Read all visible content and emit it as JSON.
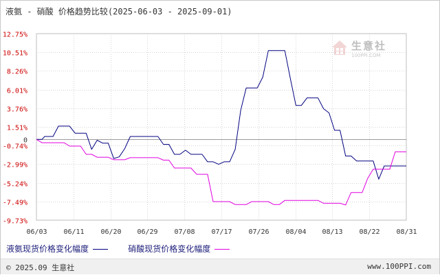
{
  "title": "液氨 - 硝酸 价格趋势比较(2025-06-03 - 2025-09-01)",
  "colors": {
    "series1": "#000080",
    "series2": "#e000e0",
    "tick_positive": "#cc0000",
    "tick_negative": "#cc0000",
    "tick_zero": "#333333",
    "grid": "#d4d4d4",
    "zero_line": "#9a9a9a"
  },
  "watermark": {
    "text": "生意社",
    "sub": "100PPI.COM",
    "icon": "house-logo-icon"
  },
  "footer": {
    "copyright": "© 2025.09 生意社",
    "site": "www.100PPI.com"
  },
  "chart_data": {
    "type": "line",
    "title": "液氨 - 硝酸 价格趋势比较(2025-06-03 - 2025-09-01)",
    "xlabel": "",
    "ylabel": "",
    "ylim": [
      -9.73,
      12.75
    ],
    "y_ticks": [
      12.75,
      10.51,
      8.26,
      6.01,
      3.76,
      1.51,
      0,
      -0.74,
      -2.99,
      -5.24,
      -7.49,
      -9.73
    ],
    "y_tick_labels": [
      "12.75%",
      "10.51%",
      "8.26%",
      "6.01%",
      "3.76%",
      "1.51%",
      "0",
      "-0.74%",
      "-2.99%",
      "-5.24%",
      "-7.49%",
      "-9.73%"
    ],
    "x_tick_labels": [
      "06/03",
      "06/11",
      "06/20",
      "06/29",
      "07/08",
      "07/17",
      "07/26",
      "08/04",
      "08/13",
      "08/22",
      "08/31"
    ],
    "grid": true,
    "legend_position": "bottom-left",
    "series": [
      {
        "name": "液氨现货价格变化幅度",
        "color": "#000080",
        "points": [
          [
            0,
            0
          ],
          [
            1,
            0
          ],
          [
            1.5,
            0.35
          ],
          [
            3,
            0.35
          ],
          [
            4,
            1.6
          ],
          [
            6,
            1.6
          ],
          [
            7,
            0.75
          ],
          [
            9,
            0.75
          ],
          [
            10,
            -1.2
          ],
          [
            11,
            -0.1
          ],
          [
            12,
            -0.45
          ],
          [
            13,
            -0.45
          ],
          [
            14,
            -2.3
          ],
          [
            15,
            -2.1
          ],
          [
            16,
            -1.1
          ],
          [
            17,
            0.35
          ],
          [
            22,
            0.35
          ],
          [
            23,
            -0.6
          ],
          [
            24,
            -0.6
          ],
          [
            25,
            -1.8
          ],
          [
            26,
            -1.8
          ],
          [
            27,
            -1.3
          ],
          [
            28,
            -1.8
          ],
          [
            30,
            -1.8
          ],
          [
            31,
            -2.7
          ],
          [
            32,
            -2.7
          ],
          [
            33,
            -3
          ],
          [
            34,
            -2.7
          ],
          [
            35,
            -2.7
          ],
          [
            36,
            -1.2
          ],
          [
            37,
            3.5
          ],
          [
            38,
            6.2
          ],
          [
            40,
            6.2
          ],
          [
            41,
            7.5
          ],
          [
            42,
            10.7
          ],
          [
            45,
            10.7
          ],
          [
            46,
            7.3
          ],
          [
            47,
            4.1
          ],
          [
            48,
            4.1
          ],
          [
            49,
            5
          ],
          [
            51,
            5
          ],
          [
            52,
            3.7
          ],
          [
            53,
            3.2
          ],
          [
            54,
            1.1
          ],
          [
            55,
            1.1
          ],
          [
            56,
            -2
          ],
          [
            57,
            -2
          ],
          [
            58,
            -2.6
          ],
          [
            61,
            -2.6
          ],
          [
            62,
            -4.8
          ],
          [
            63,
            -3.2
          ],
          [
            66,
            -3.2
          ],
          [
            67,
            -3.2
          ]
        ]
      },
      {
        "name": "硝酸现货价格变化幅度",
        "color": "#e000e0",
        "points": [
          [
            0,
            0
          ],
          [
            1,
            -0.4
          ],
          [
            5,
            -0.4
          ],
          [
            6,
            -0.8
          ],
          [
            8,
            -0.8
          ],
          [
            9,
            -1.8
          ],
          [
            10,
            -1.8
          ],
          [
            11,
            -2.15
          ],
          [
            13,
            -2.15
          ],
          [
            14,
            -2.45
          ],
          [
            16,
            -2.45
          ],
          [
            17,
            -2.2
          ],
          [
            22,
            -2.2
          ],
          [
            23,
            -2.5
          ],
          [
            24,
            -2.5
          ],
          [
            25,
            -3.45
          ],
          [
            28,
            -3.45
          ],
          [
            29,
            -4.2
          ],
          [
            31,
            -4.2
          ],
          [
            32,
            -7.5
          ],
          [
            35,
            -7.5
          ],
          [
            36,
            -7.85
          ],
          [
            38,
            -7.85
          ],
          [
            39,
            -7.5
          ],
          [
            42,
            -7.5
          ],
          [
            43,
            -7.85
          ],
          [
            44,
            -7.85
          ],
          [
            45,
            -7.35
          ],
          [
            51,
            -7.35
          ],
          [
            52,
            -7.7
          ],
          [
            55,
            -7.7
          ],
          [
            56,
            -7.9
          ],
          [
            57,
            -6.4
          ],
          [
            59,
            -6.4
          ],
          [
            60,
            -4.7
          ],
          [
            61,
            -3.6
          ],
          [
            64,
            -3.6
          ],
          [
            65,
            -1.5
          ],
          [
            67,
            -1.5
          ]
        ]
      }
    ]
  }
}
